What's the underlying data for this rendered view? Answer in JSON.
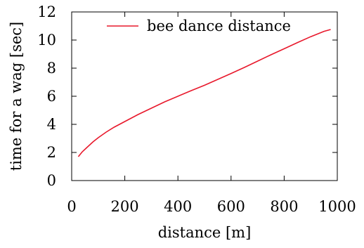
{
  "chart_data": {
    "type": "line",
    "title": "",
    "xlabel": "distance [m]",
    "ylabel": "time for a wag [sec]",
    "xlim": [
      0,
      1000
    ],
    "ylim": [
      0,
      12
    ],
    "xticks": [
      0,
      200,
      400,
      600,
      800,
      1000
    ],
    "yticks": [
      0,
      2,
      4,
      6,
      8,
      10,
      12
    ],
    "xtick_labels": [
      "0",
      "200",
      "400",
      "600",
      "800",
      "1000"
    ],
    "ytick_labels": [
      "0",
      "2",
      "4",
      "6",
      "8",
      "10",
      "12"
    ],
    "grid": false,
    "legend_position": "top-right",
    "series": [
      {
        "name": "bee dance distance",
        "color": "#e8192c",
        "x": [
          25,
          40,
          60,
          80,
          100,
          130,
          160,
          200,
          250,
          300,
          350,
          400,
          450,
          500,
          550,
          600,
          650,
          700,
          750,
          800,
          850,
          900,
          950,
          975
        ],
        "y": [
          1.7,
          2.05,
          2.4,
          2.75,
          3.05,
          3.45,
          3.8,
          4.2,
          4.7,
          5.15,
          5.6,
          6.0,
          6.4,
          6.78,
          7.2,
          7.62,
          8.05,
          8.5,
          8.95,
          9.38,
          9.82,
          10.24,
          10.62,
          10.75
        ]
      }
    ]
  }
}
